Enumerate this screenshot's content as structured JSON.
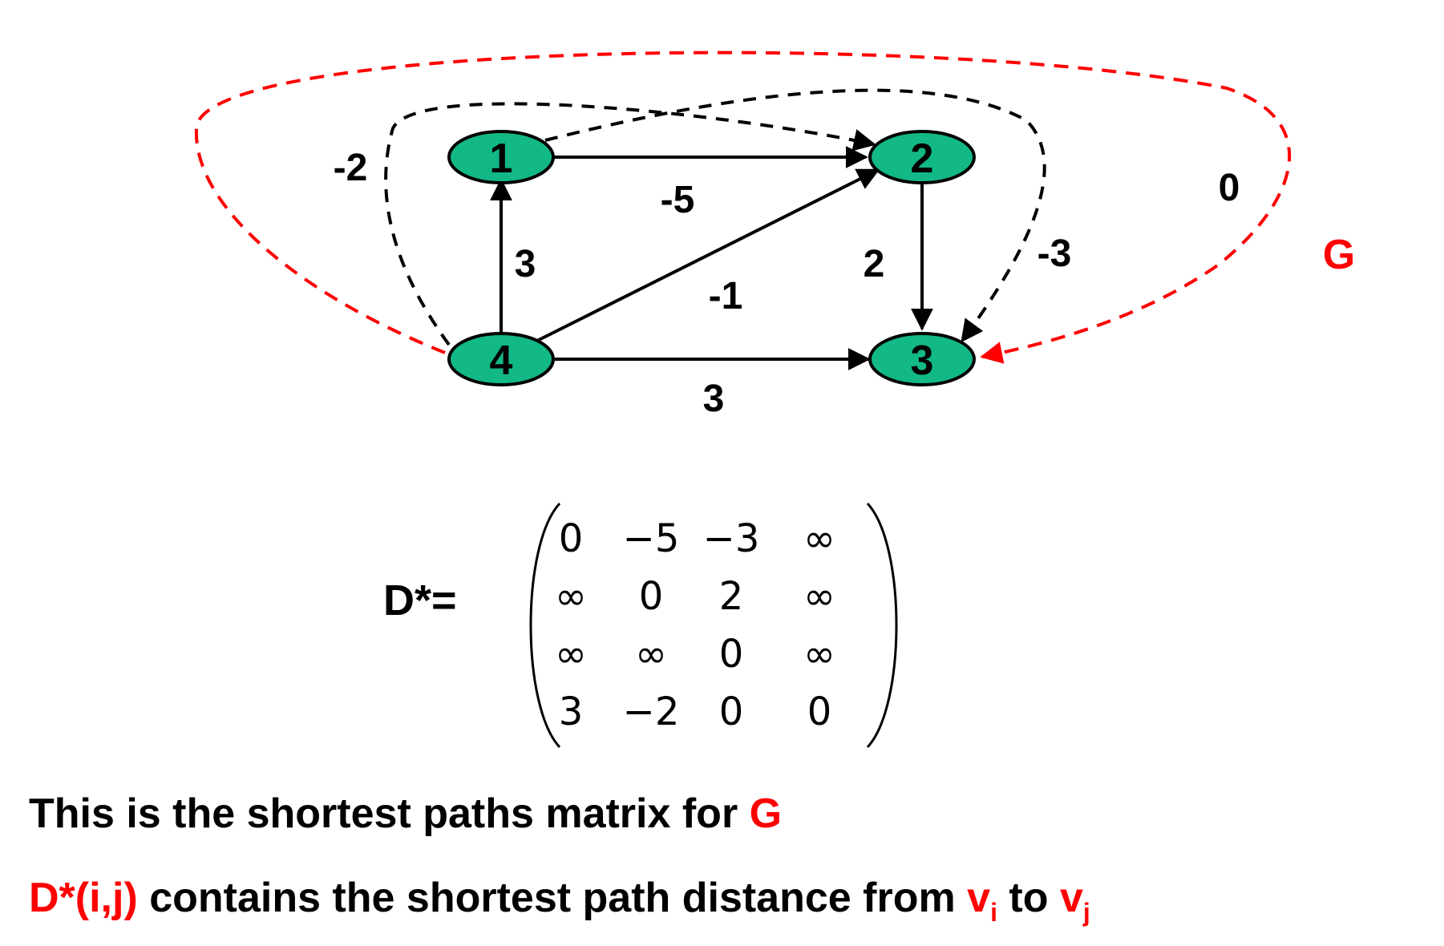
{
  "graph": {
    "name": "G",
    "nodes": [
      {
        "id": "1",
        "label": "1"
      },
      {
        "id": "2",
        "label": "2"
      },
      {
        "id": "3",
        "label": "3"
      },
      {
        "id": "4",
        "label": "4"
      }
    ],
    "edges": [
      {
        "from": "1",
        "to": "2",
        "weight": "-5",
        "style": "solid"
      },
      {
        "from": "2",
        "to": "3",
        "weight": "2",
        "style": "solid"
      },
      {
        "from": "4",
        "to": "1",
        "weight": "3",
        "style": "solid"
      },
      {
        "from": "4",
        "to": "2",
        "weight": "-1",
        "style": "solid"
      },
      {
        "from": "4",
        "to": "3",
        "weight": "3",
        "style": "solid"
      },
      {
        "from": "4",
        "to": "2",
        "weight": "-2",
        "style": "dashed",
        "color": "#000000"
      },
      {
        "from": "1",
        "to": "3",
        "weight": "-3",
        "style": "dashed",
        "color": "#000000"
      },
      {
        "from": "4",
        "to": "3",
        "weight": "0",
        "style": "dashed",
        "color": "#ff0000"
      }
    ],
    "node_fill": "#12b886",
    "accent_color": "#ff0000"
  },
  "matrix": {
    "label": "D*=",
    "rows": [
      [
        "0",
        "−5",
        "−3",
        "∞"
      ],
      [
        "∞",
        "0",
        "2",
        "∞"
      ],
      [
        "∞",
        "∞",
        "0",
        "∞"
      ],
      [
        "3",
        "−2",
        "0",
        "0"
      ]
    ]
  },
  "captions": {
    "line1_text": "This is the shortest paths matrix for ",
    "line1_highlight": "G",
    "line2_prefix": "D*(i,j)",
    "line2_middle": " contains the shortest path distance from ",
    "v_i_base": "v",
    "v_i_sub": "i",
    "to_word": " to ",
    "v_j_base": "v",
    "v_j_sub": "j"
  }
}
